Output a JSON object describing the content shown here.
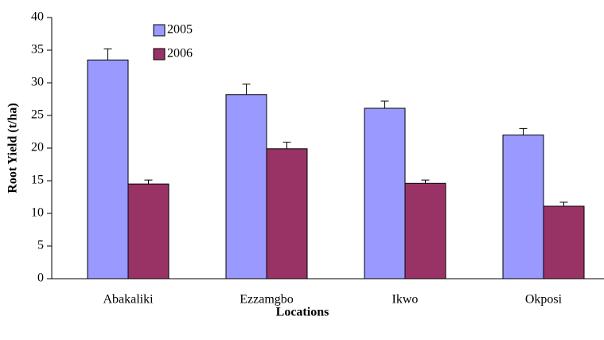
{
  "chart_data": {
    "type": "bar",
    "x_label": "Locations",
    "y_label": "Root Yield (t/ha)",
    "categories": [
      "Abakaliki",
      "Ezzamgbo",
      "Ikwo",
      "Okposi"
    ],
    "series": [
      {
        "name": "2005",
        "color": "#9999ff",
        "values": [
          33.5,
          28.2,
          26.1,
          22.0
        ],
        "errors": [
          1.7,
          1.6,
          1.1,
          1.0
        ]
      },
      {
        "name": "2006",
        "color": "#993366",
        "values": [
          14.5,
          19.9,
          14.6,
          11.1
        ],
        "errors": [
          0.6,
          1.0,
          0.5,
          0.6
        ]
      }
    ],
    "ylim": [
      0,
      40
    ],
    "yticks": [
      0,
      5,
      10,
      15,
      20,
      25,
      30,
      35,
      40
    ],
    "grid": false,
    "legend": "top-left"
  }
}
